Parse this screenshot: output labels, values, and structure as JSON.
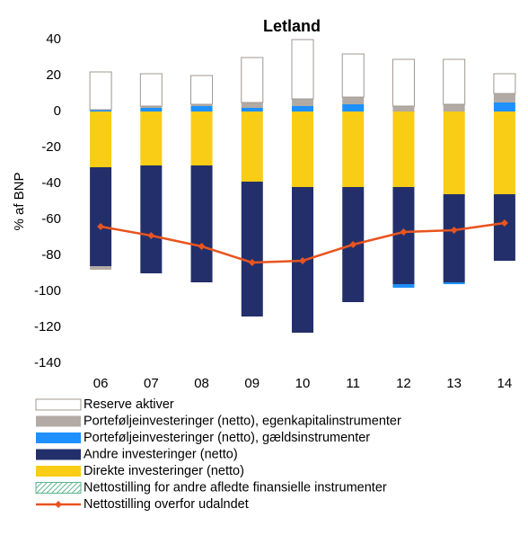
{
  "chart_data": {
    "type": "bar",
    "title": "Letland",
    "y_label": "% af BNP",
    "categories": [
      "06",
      "07",
      "08",
      "09",
      "10",
      "11",
      "12",
      "13",
      "14"
    ],
    "ylim": [
      -140,
      40
    ],
    "yticks": [
      -140,
      -120,
      -100,
      -80,
      -60,
      -40,
      -20,
      0,
      20,
      40
    ],
    "series": [
      {
        "name": "Reserve aktiver",
        "color": "#ffffff",
        "values": [
          21,
          18,
          16,
          25,
          33,
          24,
          26,
          25,
          11
        ]
      },
      {
        "name": "Porteføljeinvesteringer (netto), egenkapitalinstrumenter",
        "color": "#b2aaa4",
        "values": [
          -2,
          1,
          1,
          3,
          4,
          4,
          3,
          4,
          5
        ]
      },
      {
        "name": "Porteføljeinvesteringer (netto), gældsinstrumenter",
        "color": "#1e90ff",
        "values": [
          1,
          2,
          3,
          2,
          3,
          4,
          -2,
          -1,
          5
        ]
      },
      {
        "name": "Andre investeringer (netto)",
        "color": "#232f6b",
        "values": [
          -55,
          -60,
          -65,
          -75,
          -81,
          -64,
          -54,
          -49,
          -37
        ]
      },
      {
        "name": "Direkte investeringer (netto)",
        "color": "#f9cc16",
        "values": [
          -31,
          -30,
          -30,
          -39,
          -42,
          -42,
          -42,
          -46,
          -46
        ]
      },
      {
        "name": "Nettostilling for andre afledte finansielle instrumenter",
        "color": "#7fc8a9",
        "values": [
          0,
          0,
          0,
          0,
          0,
          0,
          0,
          0,
          0
        ]
      },
      {
        "name": "Nettostilling overfor udalndet",
        "color": "#e8541e",
        "type": "line",
        "values": [
          -64,
          -69,
          -75,
          -84,
          -83,
          -74,
          -67,
          -66,
          -62
        ]
      }
    ]
  }
}
